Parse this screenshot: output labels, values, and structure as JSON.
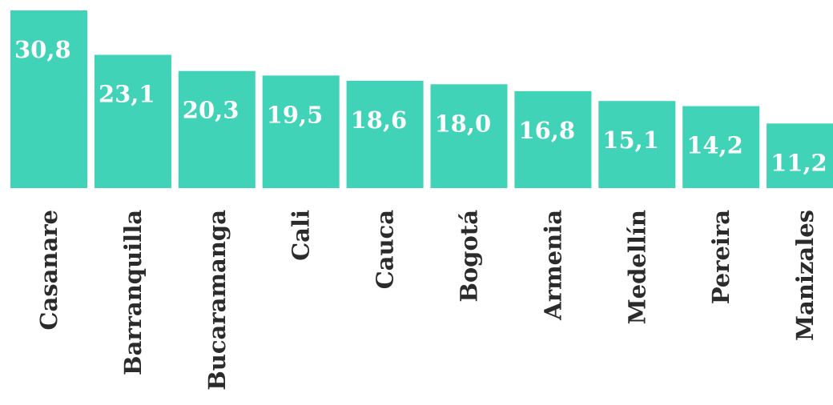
{
  "chart_data": {
    "type": "bar",
    "categories": [
      "Casanare",
      "Barranquilla",
      "Bucaramanga",
      "Cali",
      "Cauca",
      "Bogotá",
      "Armenia",
      "Medellín",
      "Pereira",
      "Manizales"
    ],
    "values": [
      30.8,
      23.1,
      20.3,
      19.5,
      18.6,
      18.0,
      16.8,
      15.1,
      14.2,
      11.2
    ],
    "value_labels": [
      "30,8",
      "23,1",
      "20,3",
      "19,5",
      "18,6",
      "18,0",
      "16,8",
      "15,1",
      "14,2",
      "11,2"
    ],
    "bar_color": "#40d3b7",
    "title": "",
    "xlabel": "",
    "ylabel": "",
    "ylim": [
      0,
      30.8
    ],
    "grid": false,
    "legend": "none"
  }
}
